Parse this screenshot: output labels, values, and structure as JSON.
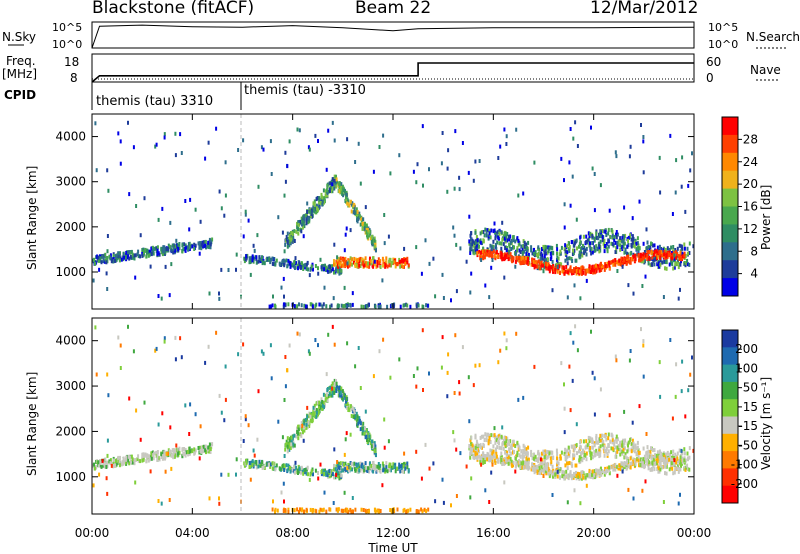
{
  "header": {
    "station": "Blackstone (fitACF)",
    "beam": "Beam 22",
    "date": "12/Mar/2012"
  },
  "strip_labels": {
    "nsky": "N.Sky",
    "nsearch": "N.Search",
    "freq_line1": "Freq.",
    "freq_line2": "[MHz]",
    "nave": "Nave",
    "cpid": "CPID",
    "tick_1e5": "10^5",
    "tick_1e0": "10^0",
    "freq_ticks": [
      "18",
      "8"
    ],
    "nave_ticks": [
      "60",
      "0"
    ]
  },
  "cpid_segments": [
    {
      "label": "themis (tau) 3310",
      "start_hour": 0
    },
    {
      "label": "themis (tau) -3310",
      "start_hour": 6
    }
  ],
  "colors": {
    "power_scale": [
      "#0000e6",
      "#1e3c9a",
      "#2e6e8c",
      "#2f8d63",
      "#49a84e",
      "#7dc242",
      "#f0b21c",
      "#ff8800",
      "#ff4000",
      "#ff0000"
    ],
    "velocity_scale": [
      "#1a3aa0",
      "#1e6ab0",
      "#2a9a9a",
      "#3fa83f",
      "#7fcf3a",
      "#c8c8c0",
      "#ffb000",
      "#ff7a00",
      "#ff3000",
      "#ff0000"
    ],
    "trace": "#000000",
    "dashed_marker": "#bbbbbb"
  },
  "chart_data": [
    {
      "type": "heatmap",
      "name": "power",
      "ylabel": "Slant Range [km]",
      "xlim_hours": [
        0,
        24
      ],
      "ylim_km": [
        180,
        4500
      ],
      "yticks": [
        1000,
        2000,
        3000,
        4000
      ],
      "colorbar": {
        "label": "Power [dB]",
        "ticks": [
          "28",
          "24",
          "20",
          "16",
          "12",
          "8",
          "4"
        ],
        "range": [
          0,
          30
        ]
      },
      "features": [
        {
          "desc": "band",
          "hours": [
            0.0,
            4.8
          ],
          "km": [
            1250,
            1500
          ]
        },
        {
          "desc": "arc",
          "hours": [
            7.5,
            11.2
          ],
          "km": [
            1500,
            3200
          ]
        },
        {
          "desc": "band",
          "hours": [
            9.5,
            12.5
          ],
          "km": [
            1000,
            1500
          ]
        },
        {
          "desc": "band",
          "hours": [
            15.0,
            23.8
          ],
          "km": [
            1100,
            2000
          ]
        }
      ]
    },
    {
      "type": "heatmap",
      "name": "velocity",
      "ylabel": "Slant Range [km]",
      "xlabel": "Time UT",
      "xlim_hours": [
        0,
        24
      ],
      "ylim_km": [
        180,
        4500
      ],
      "yticks": [
        1000,
        2000,
        3000,
        4000
      ],
      "xticks": [
        "00:00",
        "04:00",
        "08:00",
        "12:00",
        "16:00",
        "20:00",
        "00:00"
      ],
      "colorbar": {
        "label": "Velocity [m s⁻¹]",
        "ticks": [
          "200",
          "100",
          "50",
          "15",
          "-15",
          "-50",
          "-100",
          "-200"
        ],
        "range": [
          -250,
          250
        ]
      }
    },
    {
      "type": "line",
      "name": "nsky",
      "note_scale": "log, 10^0 to 10^5",
      "x_hours": [
        0,
        0.3,
        2,
        4,
        6,
        8,
        10,
        12,
        13,
        16,
        20,
        24
      ],
      "values_log10": [
        0,
        4.2,
        4.4,
        4.1,
        4.0,
        4.3,
        3.9,
        3.3,
        3.7,
        3.9,
        3.9,
        4.0
      ]
    },
    {
      "type": "line",
      "name": "frequency",
      "ylim": [
        8,
        18
      ],
      "x_hours": [
        0,
        0.3,
        13.0,
        13.0,
        24
      ],
      "values": [
        8.0,
        10.2,
        10.2,
        14.8,
        14.8
      ]
    }
  ]
}
